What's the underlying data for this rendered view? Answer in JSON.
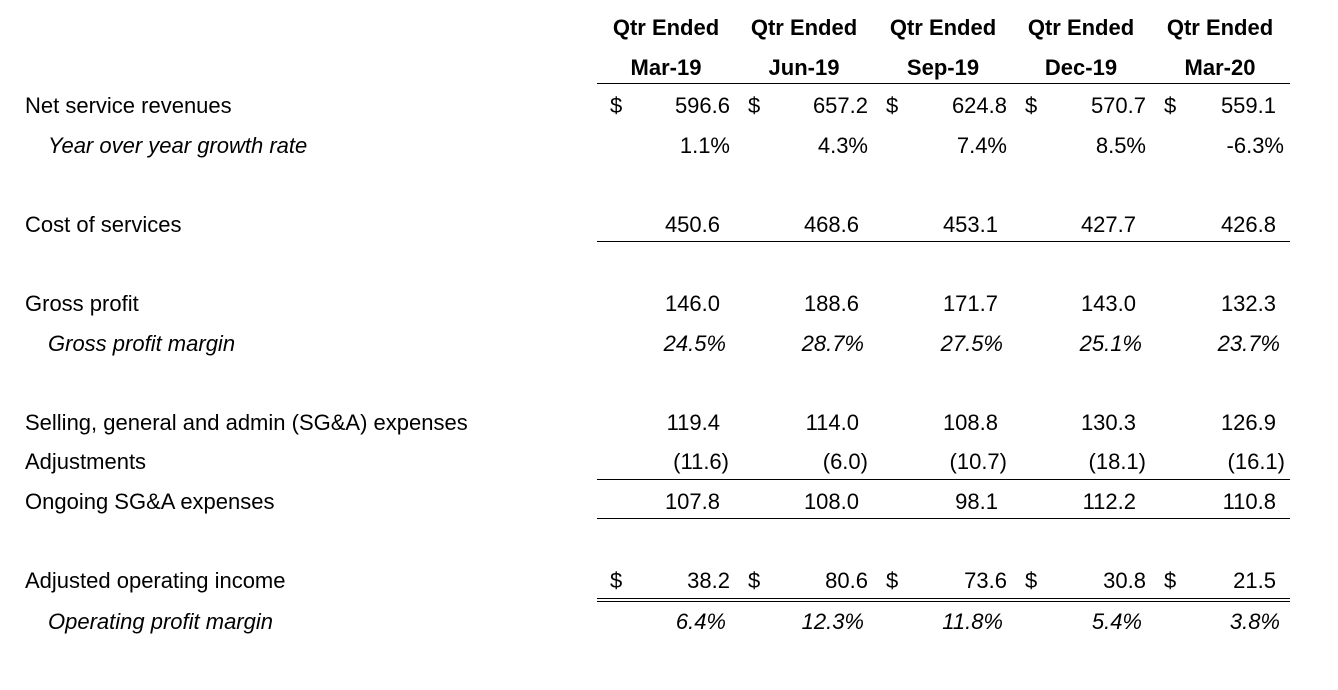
{
  "columns": [
    {
      "line1": "Qtr Ended",
      "line2": "Mar-19"
    },
    {
      "line1": "Qtr Ended",
      "line2": "Jun-19"
    },
    {
      "line1": "Qtr Ended",
      "line2": "Sep-19"
    },
    {
      "line1": "Qtr Ended",
      "line2": "Dec-19"
    },
    {
      "line1": "Qtr Ended",
      "line2": "Mar-20"
    }
  ],
  "currency_symbol": "$",
  "rows": {
    "net_service_revenues": {
      "label": "Net service revenues",
      "values": [
        "596.6",
        "657.2",
        "624.8",
        "570.7",
        "559.1"
      ]
    },
    "yoy_growth": {
      "label": "Year over year growth rate",
      "values": [
        "1.1%",
        "4.3%",
        "7.4%",
        "8.5%",
        "-6.3%"
      ]
    },
    "cost_of_services": {
      "label": "Cost of services",
      "values": [
        "450.6",
        "468.6",
        "453.1",
        "427.7",
        "426.8"
      ]
    },
    "gross_profit": {
      "label": "Gross profit",
      "values": [
        "146.0",
        "188.6",
        "171.7",
        "143.0",
        "132.3"
      ]
    },
    "gross_profit_margin": {
      "label": "Gross profit margin",
      "values": [
        "24.5%",
        "28.7%",
        "27.5%",
        "25.1%",
        "23.7%"
      ]
    },
    "sga_expenses": {
      "label": "Selling, general and admin (SG&A) expenses",
      "values": [
        "119.4",
        "114.0",
        "108.8",
        "130.3",
        "126.9"
      ]
    },
    "adjustments": {
      "label": "Adjustments",
      "values": [
        "(11.6)",
        "(6.0)",
        "(10.7)",
        "(18.1)",
        "(16.1)"
      ]
    },
    "ongoing_sga": {
      "label": "Ongoing SG&A expenses",
      "values": [
        "107.8",
        "108.0",
        "98.1",
        "112.2",
        "110.8"
      ]
    },
    "adjusted_operating_income": {
      "label": "Adjusted operating income",
      "values": [
        "38.2",
        "80.6",
        "73.6",
        "30.8",
        "21.5"
      ]
    },
    "operating_profit_margin": {
      "label": "Operating profit margin",
      "values": [
        "6.4%",
        "12.3%",
        "11.8%",
        "5.4%",
        "3.8%"
      ]
    }
  }
}
